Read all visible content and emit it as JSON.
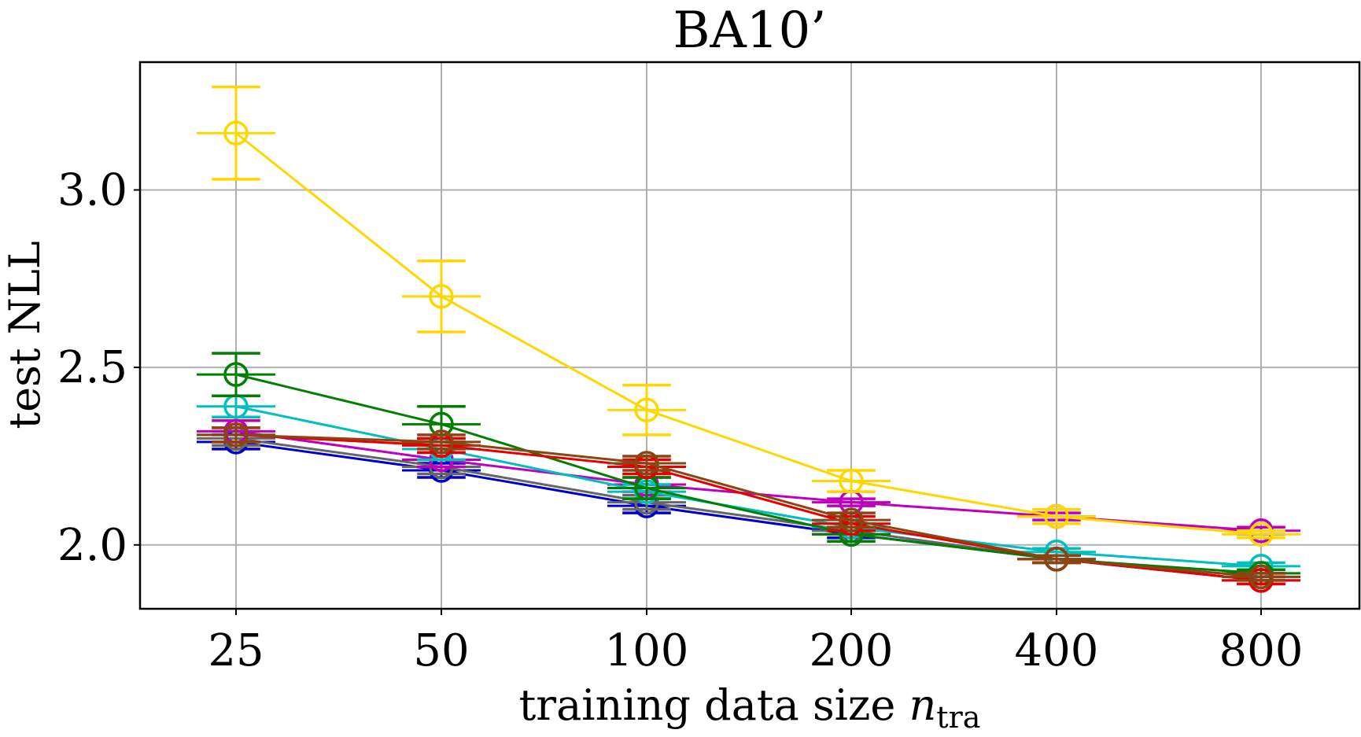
{
  "chart_data": {
    "type": "line",
    "title": "BA10’",
    "xlabel": "training data size",
    "xlabel_math": "n",
    "xlabel_sub": "tra",
    "ylabel": "test NLL",
    "x_scale": "log2",
    "categories": [
      "25",
      "50",
      "100",
      "200",
      "400",
      "800"
    ],
    "x": [
      25,
      50,
      100,
      200,
      400,
      800
    ],
    "y_ticks": [
      "2.0",
      "2.5",
      "3.0"
    ],
    "y_tick_values": [
      2.0,
      2.5,
      3.0
    ],
    "ylim": [
      1.82,
      3.36
    ],
    "grid": true,
    "legend": "none",
    "series": [
      {
        "color": "#0000cc",
        "values": [
          2.29,
          2.21,
          2.11,
          2.03,
          1.96,
          1.9
        ],
        "errors": [
          0.02,
          0.02,
          0.02,
          0.01,
          0.01,
          0.01
        ]
      },
      {
        "color": "#666666",
        "values": [
          2.3,
          2.22,
          2.12,
          2.04,
          1.96,
          1.91
        ],
        "errors": [
          0.02,
          0.02,
          0.02,
          0.01,
          0.01,
          0.01
        ]
      },
      {
        "color": "#bf00bf",
        "values": [
          2.32,
          2.24,
          2.17,
          2.12,
          2.08,
          2.04
        ],
        "errors": [
          0.03,
          0.02,
          0.02,
          0.01,
          0.01,
          0.01
        ]
      },
      {
        "color": "#00bfbf",
        "values": [
          2.39,
          2.27,
          2.15,
          2.05,
          1.98,
          1.94
        ],
        "errors": [
          0.03,
          0.03,
          0.02,
          0.01,
          0.01,
          0.01
        ]
      },
      {
        "color": "#007f00",
        "values": [
          2.48,
          2.34,
          2.16,
          2.03,
          1.96,
          1.92
        ],
        "errors": [
          0.06,
          0.05,
          0.03,
          0.02,
          0.01,
          0.01
        ]
      },
      {
        "color": "#e60000",
        "values": [
          2.31,
          2.28,
          2.22,
          2.06,
          1.96,
          1.9
        ],
        "errors": [
          0.02,
          0.02,
          0.02,
          0.02,
          0.01,
          0.01
        ]
      },
      {
        "color": "#8b4513",
        "values": [
          2.31,
          2.29,
          2.23,
          2.07,
          1.96,
          1.91
        ],
        "errors": [
          0.02,
          0.02,
          0.02,
          0.02,
          0.01,
          0.01
        ]
      },
      {
        "color": "#ffd700",
        "values": [
          3.16,
          2.7,
          2.38,
          2.18,
          2.08,
          2.03
        ],
        "errors": [
          0.13,
          0.1,
          0.07,
          0.03,
          0.02,
          0.01
        ]
      }
    ]
  }
}
